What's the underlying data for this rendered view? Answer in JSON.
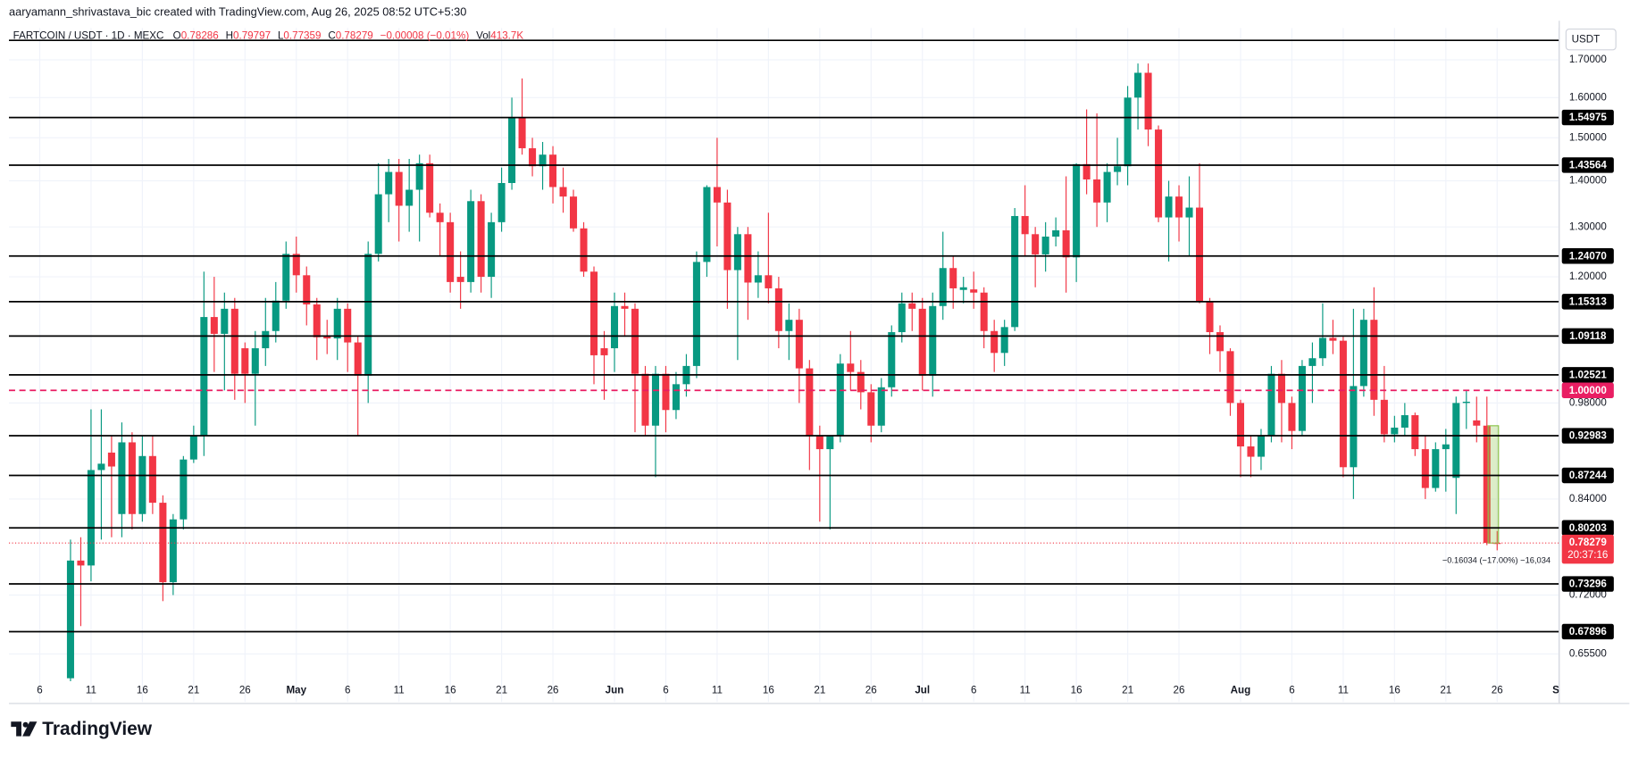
{
  "header": {
    "byline": "aaryamann_shrivastava_bic created with TradingView.com, Aug 26, 2025 08:52 UTC+5:30",
    "symbol": "FARTCOIN / USDT · 1D · MEXC",
    "ohlc": [
      {
        "key": "O",
        "value": "0.78286"
      },
      {
        "key": "H",
        "value": "0.79797"
      },
      {
        "key": "L",
        "value": "0.77359"
      },
      {
        "key": "C",
        "value": "0.78279"
      }
    ],
    "change": "−0.00008 (−0.01%)",
    "volume": {
      "key": "Vol",
      "value": "413.7K"
    },
    "branding": "TradingView"
  },
  "chart_data": {
    "type": "candlestick",
    "currency": "USDT",
    "up_color": "#089981",
    "down_color": "#f23645",
    "log_scale": true,
    "grid": true,
    "xlim": [
      "2025-04-03",
      "2025-09-01"
    ],
    "ylim": [
      0.6065,
      1.789
    ],
    "xticks": [
      {
        "value": "2025-04-06",
        "label": "6"
      },
      {
        "value": "2025-04-11",
        "label": "11"
      },
      {
        "value": "2025-04-16",
        "label": "16"
      },
      {
        "value": "2025-04-21",
        "label": "21"
      },
      {
        "value": "2025-04-26",
        "label": "26"
      },
      {
        "value": "2025-05-01",
        "label": "May"
      },
      {
        "value": "2025-05-06",
        "label": "6"
      },
      {
        "value": "2025-05-11",
        "label": "11"
      },
      {
        "value": "2025-05-16",
        "label": "16"
      },
      {
        "value": "2025-05-21",
        "label": "21"
      },
      {
        "value": "2025-05-26",
        "label": "26"
      },
      {
        "value": "2025-06-01",
        "label": "Jun"
      },
      {
        "value": "2025-06-06",
        "label": "6"
      },
      {
        "value": "2025-06-11",
        "label": "11"
      },
      {
        "value": "2025-06-16",
        "label": "16"
      },
      {
        "value": "2025-06-21",
        "label": "21"
      },
      {
        "value": "2025-06-26",
        "label": "26"
      },
      {
        "value": "2025-07-01",
        "label": "Jul"
      },
      {
        "value": "2025-07-06",
        "label": "6"
      },
      {
        "value": "2025-07-11",
        "label": "11"
      },
      {
        "value": "2025-07-16",
        "label": "16"
      },
      {
        "value": "2025-07-21",
        "label": "21"
      },
      {
        "value": "2025-07-26",
        "label": "26"
      },
      {
        "value": "2025-08-01",
        "label": "Aug"
      },
      {
        "value": "2025-08-06",
        "label": "6"
      },
      {
        "value": "2025-08-11",
        "label": "11"
      },
      {
        "value": "2025-08-16",
        "label": "16"
      },
      {
        "value": "2025-08-21",
        "label": "21"
      },
      {
        "value": "2025-08-26",
        "label": "26"
      },
      {
        "value": "2025-09-01",
        "label": "Se"
      }
    ],
    "yticks": [
      {
        "value": 1.7,
        "label": "1.70000"
      },
      {
        "value": 1.6,
        "label": "1.60000"
      },
      {
        "value": 1.5,
        "label": "1.50000"
      },
      {
        "value": 1.4,
        "label": "1.40000"
      },
      {
        "value": 1.3,
        "label": "1.30000"
      },
      {
        "value": 1.2,
        "label": "1.20000"
      },
      {
        "value": 0.98,
        "label": "0.98000"
      },
      {
        "value": 0.84,
        "label": "0.84000"
      },
      {
        "value": 0.72,
        "label": "0.72000"
      },
      {
        "value": 0.655,
        "label": "0.65500"
      }
    ],
    "x": [
      "2025-04-09",
      "2025-04-10",
      "2025-04-11",
      "2025-04-12",
      "2025-04-13",
      "2025-04-14",
      "2025-04-15",
      "2025-04-16",
      "2025-04-17",
      "2025-04-18",
      "2025-04-19",
      "2025-04-20",
      "2025-04-21",
      "2025-04-22",
      "2025-04-23",
      "2025-04-24",
      "2025-04-25",
      "2025-04-26",
      "2025-04-27",
      "2025-04-28",
      "2025-04-29",
      "2025-04-30",
      "2025-05-01",
      "2025-05-02",
      "2025-05-03",
      "2025-05-04",
      "2025-05-05",
      "2025-05-06",
      "2025-05-07",
      "2025-05-08",
      "2025-05-09",
      "2025-05-10",
      "2025-05-11",
      "2025-05-12",
      "2025-05-13",
      "2025-05-14",
      "2025-05-15",
      "2025-05-16",
      "2025-05-17",
      "2025-05-18",
      "2025-05-19",
      "2025-05-20",
      "2025-05-21",
      "2025-05-22",
      "2025-05-23",
      "2025-05-24",
      "2025-05-25",
      "2025-05-26",
      "2025-05-27",
      "2025-05-28",
      "2025-05-29",
      "2025-05-30",
      "2025-05-31",
      "2025-06-01",
      "2025-06-02",
      "2025-06-03",
      "2025-06-04",
      "2025-06-05",
      "2025-06-06",
      "2025-06-07",
      "2025-06-08",
      "2025-06-09",
      "2025-06-10",
      "2025-06-11",
      "2025-06-12",
      "2025-06-13",
      "2025-06-14",
      "2025-06-15",
      "2025-06-16",
      "2025-06-17",
      "2025-06-18",
      "2025-06-19",
      "2025-06-20",
      "2025-06-21",
      "2025-06-22",
      "2025-06-23",
      "2025-06-24",
      "2025-06-25",
      "2025-06-26",
      "2025-06-27",
      "2025-06-28",
      "2025-06-29",
      "2025-06-30",
      "2025-07-01",
      "2025-07-02",
      "2025-07-03",
      "2025-07-04",
      "2025-07-05",
      "2025-07-06",
      "2025-07-07",
      "2025-07-08",
      "2025-07-09",
      "2025-07-10",
      "2025-07-11",
      "2025-07-12",
      "2025-07-13",
      "2025-07-14",
      "2025-07-15",
      "2025-07-16",
      "2025-07-17",
      "2025-07-18",
      "2025-07-19",
      "2025-07-20",
      "2025-07-21",
      "2025-07-22",
      "2025-07-23",
      "2025-07-24",
      "2025-07-25",
      "2025-07-26",
      "2025-07-27",
      "2025-07-28",
      "2025-07-29",
      "2025-07-30",
      "2025-07-31",
      "2025-08-01",
      "2025-08-02",
      "2025-08-03",
      "2025-08-04",
      "2025-08-05",
      "2025-08-06",
      "2025-08-07",
      "2025-08-08",
      "2025-08-09",
      "2025-08-10",
      "2025-08-11",
      "2025-08-12",
      "2025-08-13",
      "2025-08-14",
      "2025-08-15",
      "2025-08-16",
      "2025-08-17",
      "2025-08-18",
      "2025-08-19",
      "2025-08-20",
      "2025-08-21",
      "2025-08-22",
      "2025-08-23",
      "2025-08-24",
      "2025-08-25",
      "2025-08-26"
    ],
    "open": [
      0.63,
      0.761,
      0.755,
      0.88,
      0.905,
      0.82,
      0.92,
      0.82,
      0.9,
      0.835,
      0.735,
      0.813,
      0.895,
      0.93,
      1.125,
      1.095,
      1.14,
      1.07,
      1.027,
      1.07,
      1.1,
      1.155,
      1.245,
      1.203,
      1.148,
      1.09,
      1.087,
      1.14,
      1.08,
      1.024,
      1.245,
      1.37,
      1.42,
      1.345,
      1.38,
      1.44,
      1.33,
      1.31,
      1.2,
      1.19,
      1.355,
      1.2,
      1.31,
      1.395,
      1.55,
      1.475,
      1.433,
      1.46,
      1.386,
      1.365,
      1.297,
      1.21,
      1.07,
      1.07,
      1.145,
      1.14,
      1.027,
      0.945,
      1.027,
      0.969,
      1.01,
      1.04,
      1.229,
      1.386,
      1.352,
      1.213,
      1.285,
      1.189,
      1.203,
      1.178,
      1.1,
      1.12,
      1.036,
      0.929,
      0.91,
      0.929,
      1.044,
      1.03,
      0.997,
      0.945,
      1.005,
      1.098,
      1.15,
      1.14,
      1.024,
      1.145,
      1.217,
      1.175,
      1.176,
      1.17,
      1.1,
      1.062,
      1.107,
      1.323,
      1.285,
      1.244,
      1.28,
      1.293,
      1.238,
      1.438,
      1.403,
      1.352,
      1.42,
      1.433,
      1.6,
      1.665,
      1.52,
      1.32,
      1.365,
      1.32,
      1.341,
      1.154,
      1.098,
      1.065,
      0.98,
      0.914,
      0.899,
      0.93,
      1.027,
      0.98,
      0.937,
      1.04,
      1.053,
      1.088,
      1.083,
      0.884,
      1.007,
      1.12,
      0.985,
      0.932,
      0.942,
      0.961,
      0.91,
      0.855,
      0.91,
      0.869,
      0.98,
      0.953,
      0.945,
      0.78286
    ],
    "high": [
      0.787,
      0.79,
      0.97,
      0.97,
      0.93,
      0.95,
      0.935,
      0.93,
      0.93,
      0.845,
      0.82,
      0.9,
      0.945,
      1.21,
      1.2,
      1.17,
      1.16,
      1.08,
      1.1,
      1.16,
      1.19,
      1.27,
      1.28,
      1.22,
      1.16,
      1.12,
      1.16,
      1.15,
      1.09,
      1.27,
      1.44,
      1.45,
      1.45,
      1.45,
      1.46,
      1.46,
      1.35,
      1.33,
      1.25,
      1.38,
      1.37,
      1.33,
      1.43,
      1.6,
      1.65,
      1.5,
      1.49,
      1.48,
      1.43,
      1.38,
      1.31,
      1.22,
      1.1,
      1.17,
      1.17,
      1.15,
      1.04,
      1.04,
      1.04,
      1.03,
      1.06,
      1.25,
      1.39,
      1.5,
      1.38,
      1.3,
      1.3,
      1.25,
      1.33,
      1.2,
      1.15,
      1.14,
      1.05,
      0.945,
      0.93,
      1.06,
      1.1,
      1.05,
      1.01,
      1.02,
      1.11,
      1.17,
      1.17,
      1.16,
      1.17,
      1.29,
      1.24,
      1.2,
      1.21,
      1.18,
      1.12,
      1.12,
      1.34,
      1.39,
      1.3,
      1.31,
      1.32,
      1.41,
      1.44,
      1.57,
      1.56,
      1.44,
      1.5,
      1.63,
      1.69,
      1.69,
      1.53,
      1.4,
      1.39,
      1.41,
      1.44,
      1.16,
      1.11,
      1.07,
      0.985,
      0.93,
      0.94,
      1.04,
      1.05,
      0.99,
      1.05,
      1.08,
      1.15,
      1.12,
      1.09,
      1.14,
      1.14,
      1.18,
      1.04,
      0.96,
      0.98,
      0.965,
      0.93,
      0.92,
      0.94,
      0.99,
      1.0,
      0.99,
      0.99,
      0.79797
    ],
    "low": [
      0.627,
      0.685,
      0.736,
      0.787,
      0.79,
      0.79,
      0.8,
      0.81,
      0.82,
      0.713,
      0.72,
      0.8,
      0.89,
      0.9,
      1.03,
      1.0,
      0.985,
      0.98,
      0.945,
      1.04,
      1.08,
      1.14,
      1.17,
      1.11,
      1.05,
      1.06,
      1.05,
      1.03,
      0.93,
      0.98,
      1.23,
      1.31,
      1.27,
      1.29,
      1.27,
      1.32,
      1.24,
      1.17,
      1.14,
      1.17,
      1.17,
      1.16,
      1.29,
      1.38,
      1.46,
      1.41,
      1.38,
      1.35,
      1.33,
      1.29,
      1.2,
      1.01,
      0.985,
      1.03,
      1.09,
      0.935,
      0.93,
      0.87,
      0.935,
      0.955,
      0.99,
      1.02,
      1.2,
      1.26,
      1.14,
      1.05,
      1.12,
      1.16,
      1.15,
      1.07,
      1.05,
      0.98,
      0.88,
      0.81,
      0.8,
      0.92,
      1.0,
      0.97,
      0.92,
      0.935,
      0.99,
      1.08,
      1.1,
      1.0,
      0.99,
      1.12,
      1.14,
      1.15,
      1.14,
      1.07,
      1.03,
      1.04,
      1.1,
      1.24,
      1.18,
      1.21,
      1.26,
      1.17,
      1.19,
      1.37,
      1.3,
      1.31,
      1.39,
      1.39,
      1.52,
      1.48,
      1.31,
      1.23,
      1.27,
      1.24,
      1.15,
      1.06,
      1.03,
      0.96,
      0.87,
      0.87,
      0.88,
      0.92,
      0.92,
      0.91,
      0.93,
      0.98,
      1.04,
      1.06,
      0.87,
      0.84,
      0.99,
      0.96,
      0.92,
      0.92,
      0.93,
      0.9,
      0.84,
      0.85,
      0.85,
      0.82,
      0.94,
      0.92,
      0.78,
      0.77359
    ],
    "close": [
      0.761,
      0.755,
      0.88,
      0.889,
      0.885,
      0.92,
      0.82,
      0.9,
      0.835,
      0.735,
      0.813,
      0.895,
      0.93,
      1.125,
      1.095,
      1.14,
      1.027,
      1.027,
      1.07,
      1.1,
      1.155,
      1.245,
      1.203,
      1.148,
      1.089,
      1.087,
      1.14,
      1.08,
      1.024,
      1.245,
      1.37,
      1.42,
      1.345,
      1.38,
      1.44,
      1.33,
      1.31,
      1.19,
      1.19,
      1.355,
      1.2,
      1.31,
      1.395,
      1.55,
      1.475,
      1.433,
      1.46,
      1.386,
      1.365,
      1.297,
      1.21,
      1.058,
      1.058,
      1.145,
      1.14,
      1.027,
      0.945,
      1.027,
      0.969,
      1.01,
      1.04,
      1.229,
      1.386,
      1.352,
      1.213,
      1.285,
      1.189,
      1.203,
      1.178,
      1.1,
      1.12,
      1.036,
      0.929,
      0.91,
      0.929,
      1.044,
      1.03,
      0.997,
      0.945,
      1.005,
      1.098,
      1.15,
      1.14,
      1.024,
      1.145,
      1.217,
      1.178,
      1.18,
      1.17,
      1.1,
      1.062,
      1.107,
      1.323,
      1.285,
      1.244,
      1.28,
      1.293,
      1.238,
      1.438,
      1.403,
      1.352,
      1.42,
      1.433,
      1.6,
      1.665,
      1.52,
      1.32,
      1.365,
      1.32,
      1.341,
      1.154,
      1.098,
      1.065,
      0.98,
      0.914,
      0.899,
      0.93,
      1.027,
      0.98,
      0.937,
      1.04,
      1.053,
      1.088,
      1.083,
      0.884,
      1.007,
      1.12,
      0.985,
      0.932,
      0.942,
      0.961,
      0.91,
      0.855,
      0.91,
      0.917,
      0.98,
      0.982,
      0.945,
      0.7829,
      0.78279
    ],
    "levels": {
      "color": "#000000",
      "values": [
        1.754,
        1.54975,
        1.43564,
        1.2407,
        1.15313,
        1.09118,
        1.02521,
        0.92983,
        0.87244,
        0.80203,
        0.73296,
        0.67896
      ],
      "value_labels": [
        null,
        "1.54975",
        "1.43564",
        "1.24070",
        "1.15313",
        "1.09118",
        "1.02521",
        "0.92983",
        "0.87244",
        "0.80203",
        "0.73296",
        "0.67896"
      ]
    },
    "reference_level": {
      "value": 1,
      "label": "1.00000",
      "color": "#e91e63"
    },
    "last_price": {
      "value": 0.78279,
      "label": "0.78279",
      "countdown": "20:37:16",
      "color": "#f23645"
    },
    "measure": "−0.16034 (−17.00%) −16,034"
  }
}
